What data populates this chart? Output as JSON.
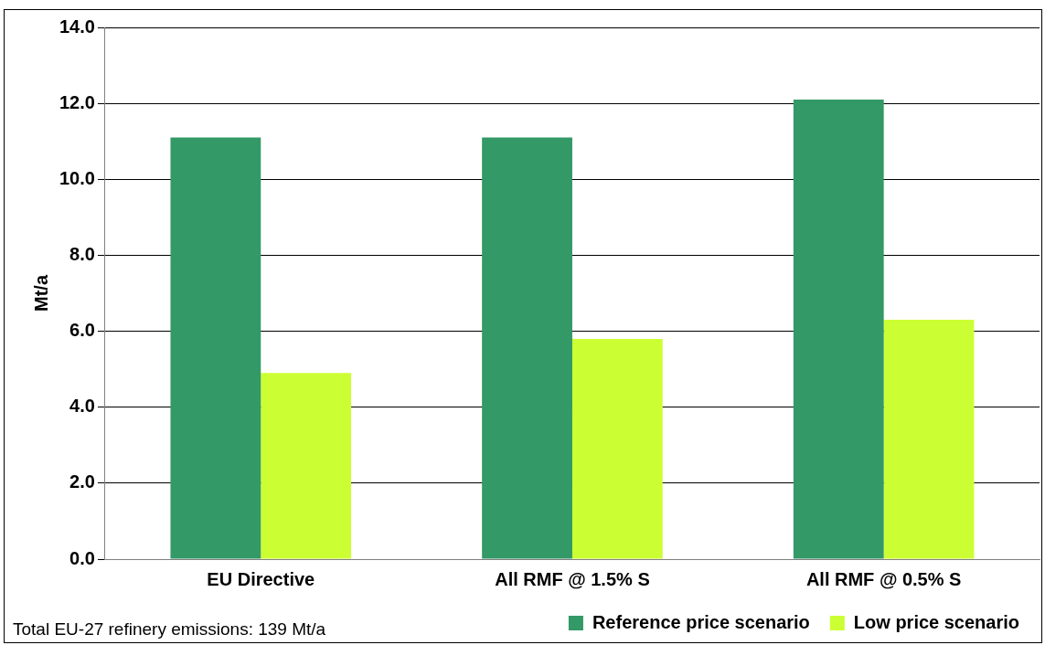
{
  "chart_data": {
    "type": "bar",
    "ylabel": "Mt/a",
    "categories": [
      "EU Directive",
      "All RMF @ 1.5% S",
      "All RMF @ 0.5% S"
    ],
    "series": [
      {
        "name": "Reference price scenario",
        "color": "#339966",
        "values": [
          11.1,
          11.1,
          12.1
        ]
      },
      {
        "name": "Low price scenario",
        "color": "#ccff33",
        "values": [
          4.9,
          5.8,
          6.3
        ]
      }
    ],
    "ylim": [
      0,
      14
    ],
    "yticks": [
      {
        "value": 0,
        "label": "0.0"
      },
      {
        "value": 2,
        "label": "2.0"
      },
      {
        "value": 4,
        "label": "4.0"
      },
      {
        "value": 6,
        "label": "6.0"
      },
      {
        "value": 8,
        "label": "8.0"
      },
      {
        "value": 10,
        "label": "10.0"
      },
      {
        "value": 12,
        "label": "12.0"
      },
      {
        "value": 14,
        "label": "14.0"
      }
    ],
    "grid": "y",
    "legend": "bottom right",
    "annotations": [
      "Total EU-27 refinery emissions: 139 Mt/a"
    ]
  }
}
